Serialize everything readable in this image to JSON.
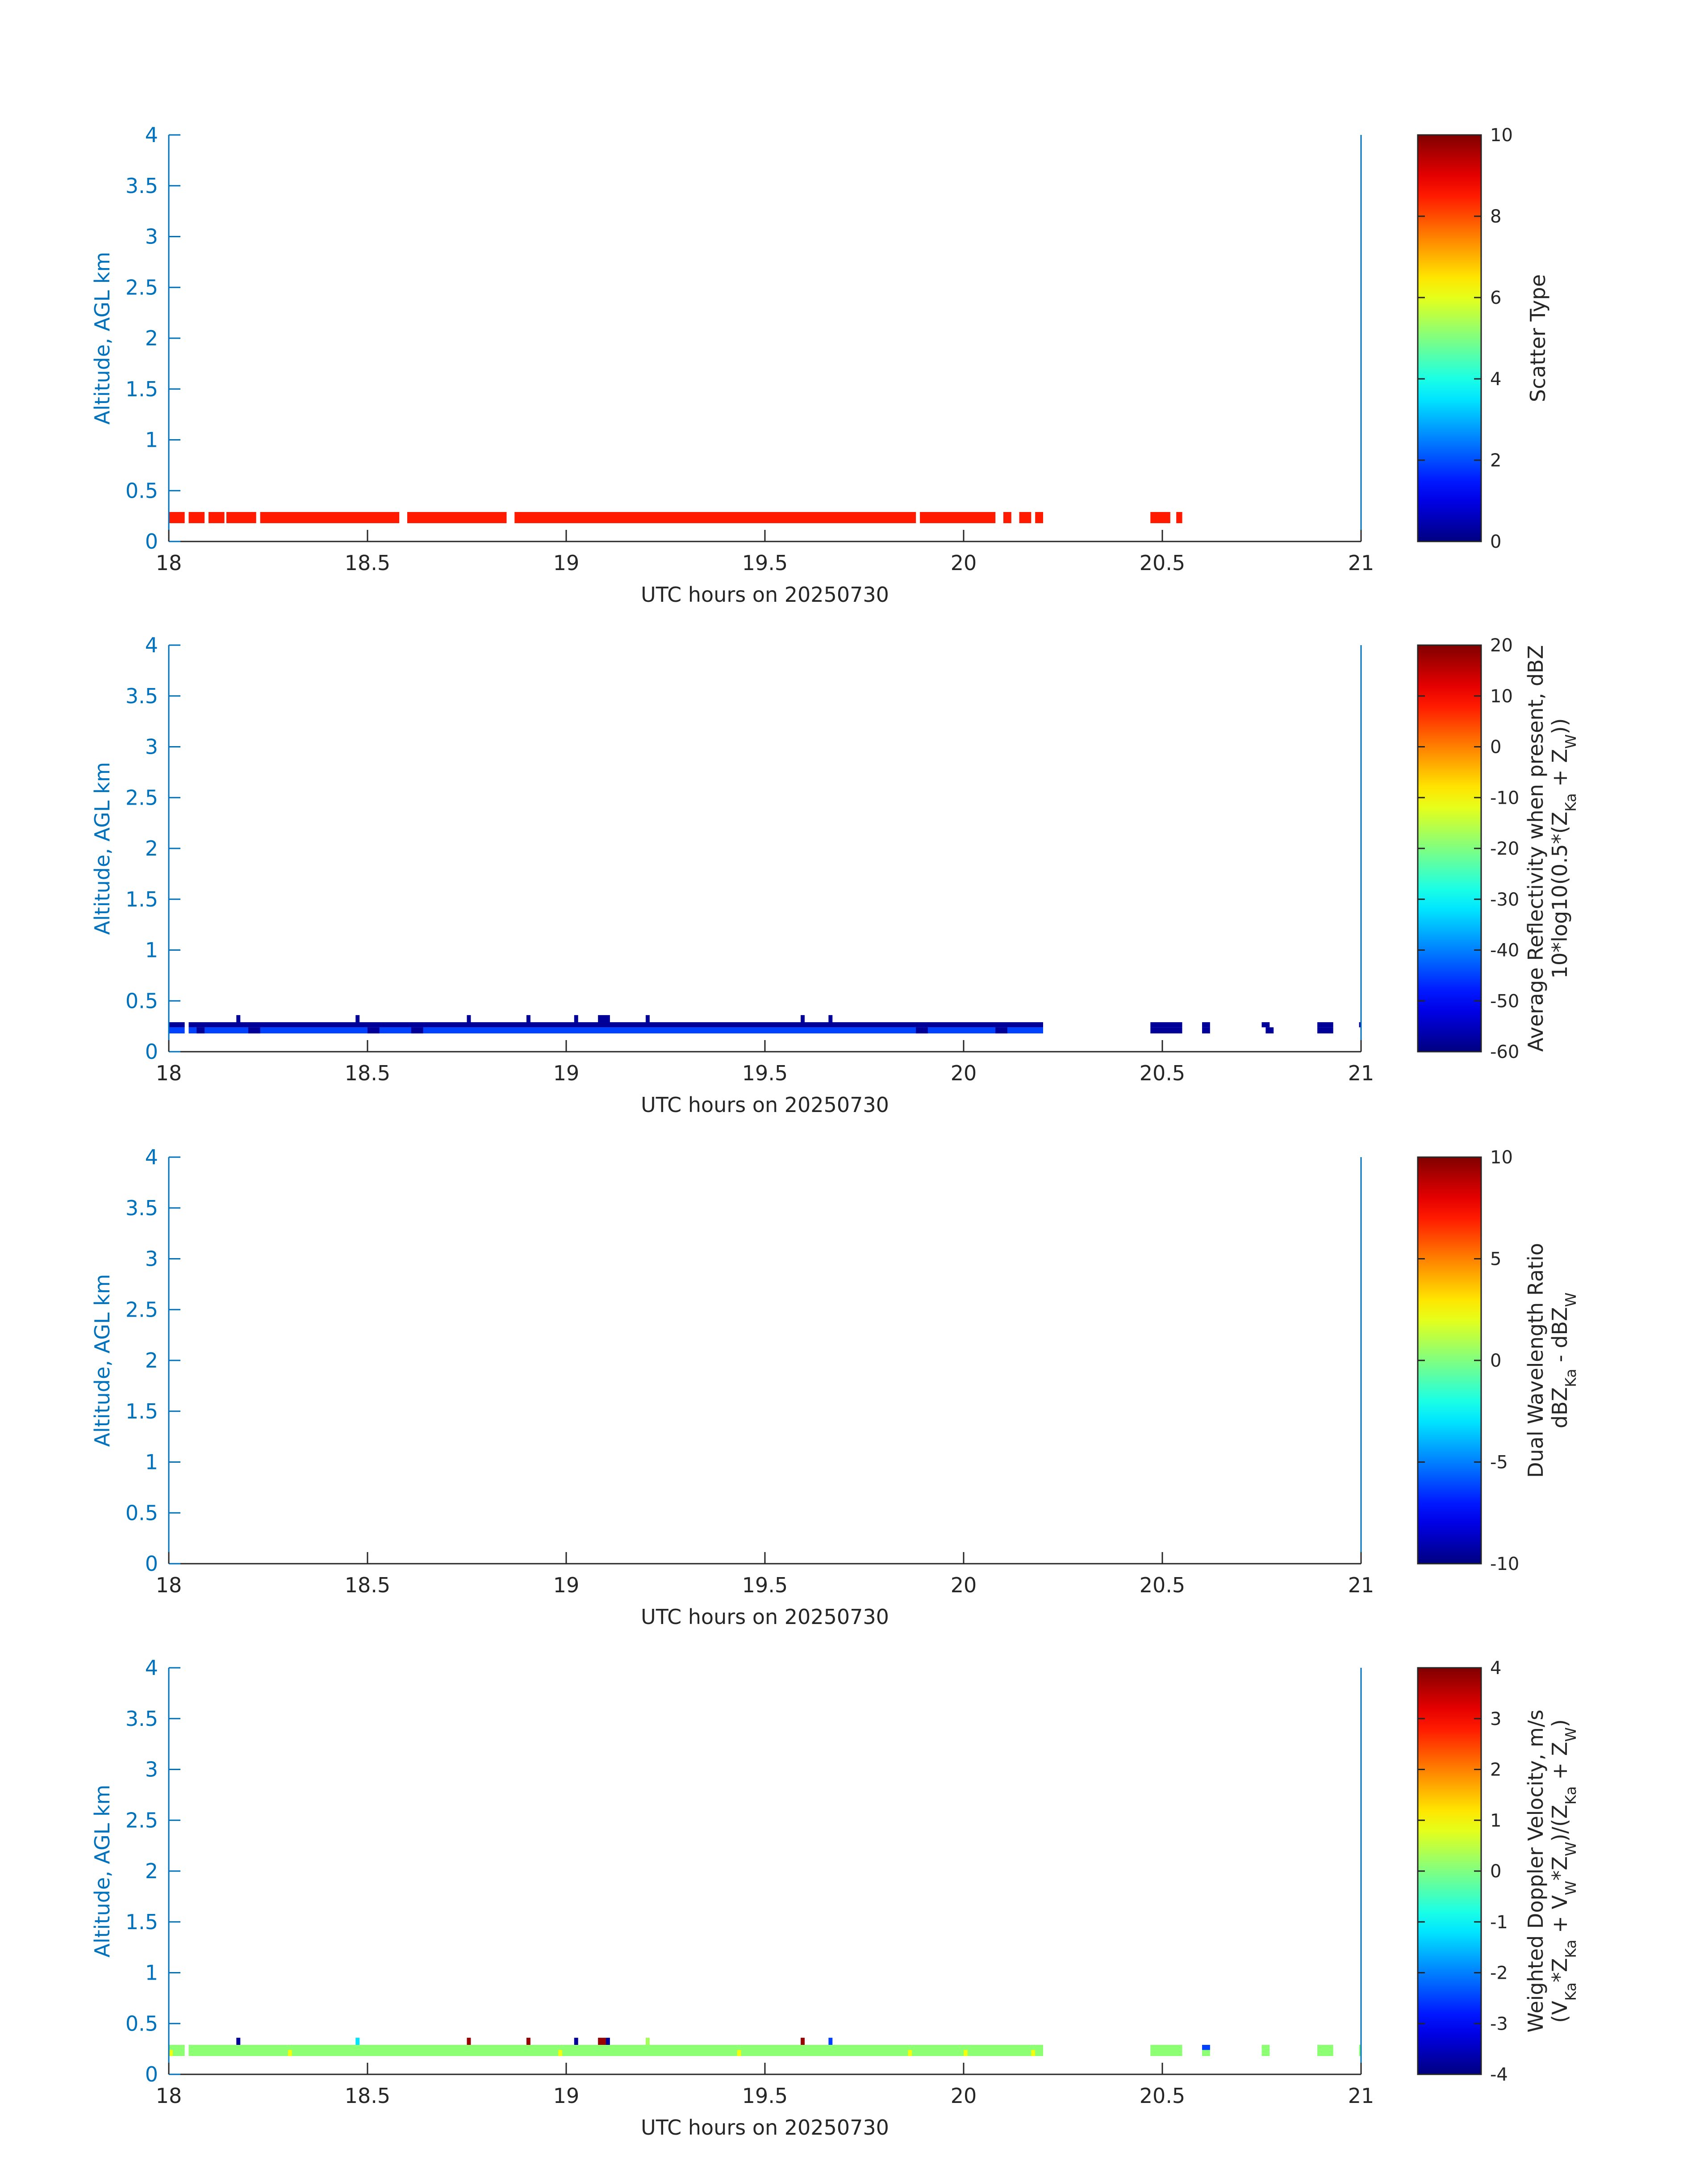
{
  "colors": {
    "axis": "#0072BD",
    "text": "#262626",
    "background": "#ffffff"
  },
  "chart_data": [
    {
      "type": "heatmap",
      "xlabel": "UTC hours on 20250730",
      "ylabel": "Altitude, AGL km",
      "xlim": [
        18,
        21
      ],
      "ylim": [
        0,
        4
      ],
      "x_ticks": [
        "18",
        "18.5",
        "19",
        "19.5",
        "20",
        "20.5",
        "21"
      ],
      "y_ticks": [
        "0",
        "0.5",
        "1",
        "1.5",
        "2",
        "2.5",
        "3",
        "3.5",
        "4"
      ],
      "colorbar": {
        "label_lines": [
          "Scatter Type"
        ],
        "range": [
          0,
          10
        ],
        "ticks": [
          "0",
          "2",
          "4",
          "6",
          "8",
          "10"
        ]
      },
      "layers": [
        {
          "value": 8.5,
          "y_bottom": 0.18,
          "y_top": 0.29,
          "segments": [
            [
              18.0,
              18.04
            ],
            [
              18.05,
              18.09
            ],
            [
              18.1,
              18.14
            ],
            [
              18.145,
              18.22
            ],
            [
              18.23,
              18.58
            ],
            [
              18.6,
              18.85
            ],
            [
              18.87,
              19.88
            ],
            [
              19.89,
              20.08
            ],
            [
              20.1,
              20.12
            ],
            [
              20.14,
              20.17
            ],
            [
              20.18,
              20.2
            ],
            [
              20.47,
              20.52
            ],
            [
              20.535,
              20.55
            ]
          ]
        }
      ]
    },
    {
      "type": "heatmap",
      "xlabel": "UTC hours on 20250730",
      "ylabel": "Altitude, AGL km",
      "xlim": [
        18,
        21
      ],
      "ylim": [
        0,
        4
      ],
      "x_ticks": [
        "18",
        "18.5",
        "19",
        "19.5",
        "20",
        "20.5",
        "21"
      ],
      "y_ticks": [
        "0",
        "0.5",
        "1",
        "1.5",
        "2",
        "2.5",
        "3",
        "3.5",
        "4"
      ],
      "colorbar": {
        "label_lines": [
          "Average Reflectivity when present, dBZ",
          "10*log10(0.5*(Z_Ka + Z_W))"
        ],
        "range": [
          -60,
          20
        ],
        "ticks": [
          "-60",
          "-50",
          "-40",
          "-30",
          "-20",
          "-10",
          "0",
          "10",
          "20"
        ]
      },
      "layers": [
        {
          "value": -58,
          "y_bottom": 0.24,
          "y_top": 0.29,
          "segments": [
            [
              18.0,
              18.04
            ],
            [
              18.05,
              20.2
            ],
            [
              20.47,
              20.55
            ],
            [
              20.6,
              20.62
            ],
            [
              20.75,
              20.77
            ],
            [
              20.89,
              20.93
            ],
            [
              20.995,
              21.0
            ]
          ]
        },
        {
          "value": -45,
          "y_bottom": 0.18,
          "y_top": 0.24,
          "segments": [
            [
              18.0,
              18.04
            ],
            [
              18.05,
              20.2
            ]
          ]
        },
        {
          "value": -58,
          "y_bottom": 0.18,
          "y_top": 0.24,
          "segments": [
            [
              18.07,
              18.09
            ],
            [
              18.2,
              18.23
            ],
            [
              18.5,
              18.53
            ],
            [
              18.61,
              18.64
            ],
            [
              19.88,
              19.91
            ],
            [
              20.08,
              20.11
            ],
            [
              20.47,
              20.55
            ],
            [
              20.6,
              20.62
            ],
            [
              20.76,
              20.78
            ],
            [
              20.89,
              20.93
            ]
          ]
        },
        {
          "value": -58,
          "y_bottom": 0.29,
          "y_top": 0.36,
          "segments": [
            [
              18.17,
              18.18
            ],
            [
              18.47,
              18.48
            ],
            [
              18.75,
              18.76
            ],
            [
              18.9,
              18.91
            ],
            [
              19.02,
              19.03
            ],
            [
              19.08,
              19.11
            ],
            [
              19.2,
              19.21
            ],
            [
              19.59,
              19.6
            ],
            [
              19.66,
              19.67
            ]
          ]
        }
      ]
    },
    {
      "type": "heatmap",
      "xlabel": "UTC hours on 20250730",
      "ylabel": "Altitude, AGL km",
      "xlim": [
        18,
        21
      ],
      "ylim": [
        0,
        4
      ],
      "x_ticks": [
        "18",
        "18.5",
        "19",
        "19.5",
        "20",
        "20.5",
        "21"
      ],
      "y_ticks": [
        "0",
        "0.5",
        "1",
        "1.5",
        "2",
        "2.5",
        "3",
        "3.5",
        "4"
      ],
      "colorbar": {
        "label_lines": [
          "Dual Wavelength Ratio",
          "dBZ_Ka - dBZ_W"
        ],
        "range": [
          -10,
          10
        ],
        "ticks": [
          "-10",
          "-5",
          "0",
          "5",
          "10"
        ]
      },
      "layers": []
    },
    {
      "type": "heatmap",
      "xlabel": "UTC hours on 20250730",
      "ylabel": "Altitude, AGL km",
      "xlim": [
        18,
        21
      ],
      "ylim": [
        0,
        4
      ],
      "x_ticks": [
        "18",
        "18.5",
        "19",
        "19.5",
        "20",
        "20.5",
        "21"
      ],
      "y_ticks": [
        "0",
        "0.5",
        "1",
        "1.5",
        "2",
        "2.5",
        "3",
        "3.5",
        "4"
      ],
      "colorbar": {
        "label_lines": [
          "Weighted Doppler Velocity, m/s",
          "(V_Ka*Z_Ka + V_W*Z_W)/(Z_Ka + Z_W)"
        ],
        "range": [
          -4,
          4
        ],
        "ticks": [
          "-4",
          "-3",
          "-2",
          "-1",
          "0",
          "1",
          "2",
          "3",
          "4"
        ]
      },
      "layers": [
        {
          "value": 0.1,
          "y_bottom": 0.18,
          "y_top": 0.29,
          "segments": [
            [
              18.0,
              18.04
            ],
            [
              18.05,
              20.2
            ],
            [
              20.47,
              20.55
            ],
            [
              20.6,
              20.62
            ],
            [
              20.75,
              20.77
            ],
            [
              20.89,
              20.93
            ],
            [
              20.995,
              21.0
            ]
          ]
        },
        {
          "value": 0.9,
          "y_bottom": 0.18,
          "y_top": 0.24,
          "segments": [
            [
              18.0,
              18.01
            ],
            [
              18.3,
              18.31
            ],
            [
              18.98,
              18.99
            ],
            [
              19.43,
              19.44
            ],
            [
              19.86,
              19.87
            ],
            [
              20.0,
              20.01
            ],
            [
              20.17,
              20.18
            ]
          ]
        },
        {
          "value": -3.8,
          "y_bottom": 0.29,
          "y_top": 0.36,
          "segments": [
            [
              18.17,
              18.18
            ],
            [
              19.02,
              19.03
            ],
            [
              19.1,
              19.11
            ]
          ]
        },
        {
          "value": -1.2,
          "y_bottom": 0.29,
          "y_top": 0.36,
          "segments": [
            [
              18.47,
              18.48
            ]
          ]
        },
        {
          "value": 3.8,
          "y_bottom": 0.29,
          "y_top": 0.36,
          "segments": [
            [
              18.75,
              18.76
            ],
            [
              18.9,
              18.91
            ],
            [
              19.08,
              19.1
            ],
            [
              19.59,
              19.6
            ]
          ]
        },
        {
          "value": 0.3,
          "y_bottom": 0.29,
          "y_top": 0.36,
          "segments": [
            [
              19.2,
              19.21
            ]
          ]
        },
        {
          "value": -2.5,
          "y_bottom": 0.29,
          "y_top": 0.36,
          "segments": [
            [
              19.66,
              19.67
            ]
          ]
        },
        {
          "value": -2.5,
          "y_bottom": 0.24,
          "y_top": 0.29,
          "segments": [
            [
              20.6,
              20.62
            ]
          ]
        }
      ]
    }
  ]
}
